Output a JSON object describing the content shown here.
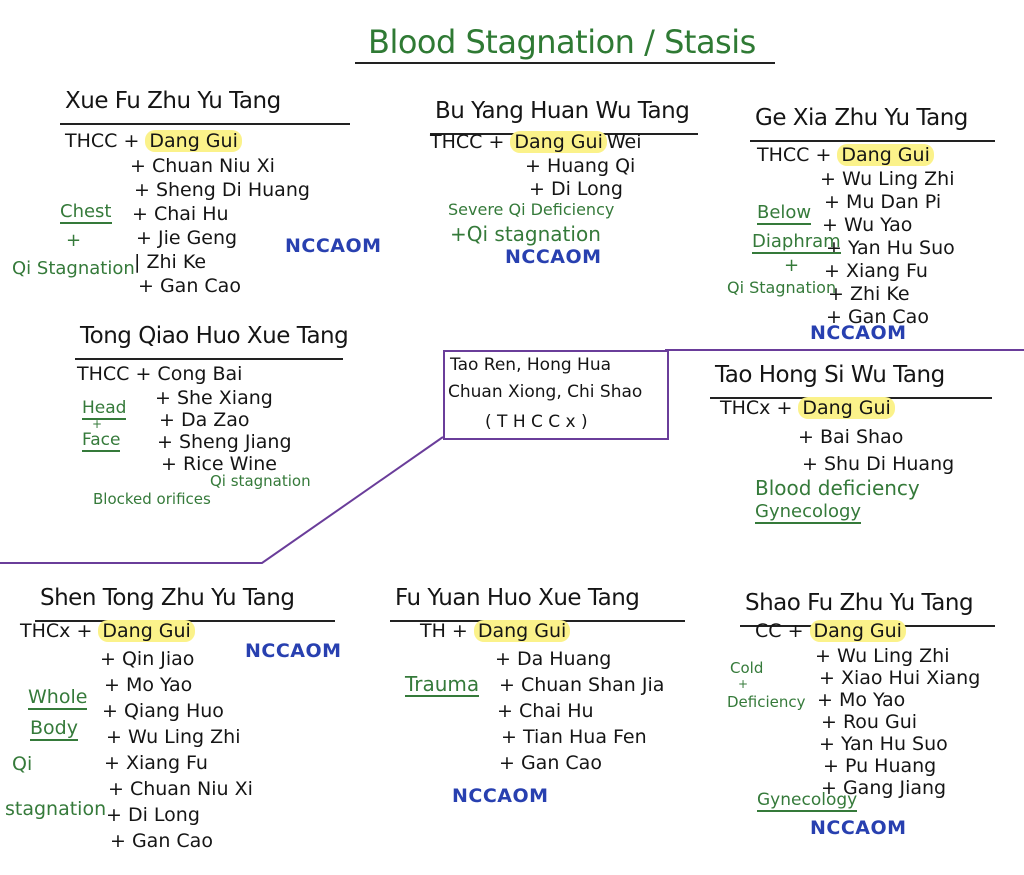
{
  "title": "Blood Stagnation / Stasis",
  "colors": {
    "ink": "#151515",
    "notes": "#357a3a",
    "badge": "#2840b0",
    "highlight": "#fbf28a",
    "divider": "#6a3d9a"
  },
  "center_box": {
    "lines": [
      "Tao Ren,  Hong Hua",
      "Chuan Xiong, Chi Shao",
      "( T H C C x )"
    ]
  },
  "sections": [
    {
      "title": "Xue Fu Zhu Yu Tang",
      "base": "THCC +",
      "highlight": "Dang Gui",
      "suffix": "",
      "herbs": [
        "+ Chuan Niu Xi",
        "+ Sheng Di Huang",
        "+ Chai Hu",
        "+ Jie Geng",
        "| Zhi Ke",
        "+ Gan Cao"
      ],
      "notes": [
        "Chest",
        "+",
        "Qi Stagnation"
      ],
      "badge": "NCCAOM"
    },
    {
      "title": "Bu Yang Huan Wu Tang",
      "base": "THCC +",
      "highlight": "Dang Gui",
      "suffix": "Wei",
      "herbs": [
        "+ Huang Qi",
        "+ Di Long"
      ],
      "notes": [
        "Severe Qi Deficiency",
        "+Qi stagnation"
      ],
      "badge": "NCCAOM"
    },
    {
      "title": "Ge Xia Zhu Yu Tang",
      "base": "THCC +",
      "highlight": "Dang Gui",
      "suffix": "",
      "herbs": [
        "+ Wu Ling Zhi",
        "+ Mu Dan Pi",
        "+ Wu Yao",
        "+ Yan Hu Suo",
        "+ Xiang Fu",
        "+ Zhi Ke",
        "+ Gan Cao"
      ],
      "notes": [
        "Below",
        "Diaphram",
        "+",
        "Qi Stagnation"
      ],
      "badge": "NCCAOM"
    },
    {
      "title": "Tong Qiao Huo Xue Tang",
      "base": "THCC + Cong Bai",
      "highlight": "",
      "suffix": "",
      "herbs": [
        "+ She Xiang",
        "+ Da Zao",
        "+ Sheng Jiang",
        "+ Rice Wine"
      ],
      "notes": [
        "Head",
        "+",
        "Face",
        "Qi stagnation",
        "Blocked orifices"
      ],
      "badge": ""
    },
    {
      "title": "Tao Hong Si Wu Tang",
      "base": "THCx +",
      "highlight": "Dang Gui",
      "suffix": "",
      "herbs": [
        "+ Bai Shao",
        "+ Shu Di Huang"
      ],
      "notes": [
        "Blood deficiency",
        "Gynecology"
      ],
      "badge": ""
    },
    {
      "title": "Shen Tong Zhu Yu Tang",
      "base": "THCx +",
      "highlight": "Dang Gui",
      "suffix": "",
      "herbs": [
        "+ Qin Jiao",
        "+ Mo Yao",
        "+ Qiang Huo",
        "+ Wu Ling Zhi",
        "+ Xiang Fu",
        "+ Chuan Niu Xi",
        "+ Di Long",
        "+ Gan Cao"
      ],
      "notes": [
        "Whole",
        "Body",
        "Qi",
        "stagnation"
      ],
      "badge": "NCCAOM"
    },
    {
      "title": "Fu Yuan Huo Xue Tang",
      "base": "TH   +",
      "highlight": "Dang Gui",
      "suffix": "",
      "herbs": [
        "+ Da Huang",
        "+ Chuan Shan Jia",
        "+ Chai Hu",
        "+ Tian Hua Fen",
        "+ Gan Cao"
      ],
      "notes": [
        "Trauma"
      ],
      "badge": "NCCAOM"
    },
    {
      "title": "Shao Fu Zhu Yu Tang",
      "base": "CC +",
      "highlight": "Dang Gui",
      "suffix": "",
      "herbs": [
        "+ Wu Ling Zhi",
        "+ Xiao Hui Xiang",
        "+ Mo Yao",
        "+ Rou Gui",
        "+ Yan Hu Suo",
        "+ Pu Huang",
        "+ Gang Jiang"
      ],
      "notes": [
        "Cold",
        "+",
        "Deficiency",
        "Gynecology"
      ],
      "badge": "NCCAOM"
    }
  ]
}
